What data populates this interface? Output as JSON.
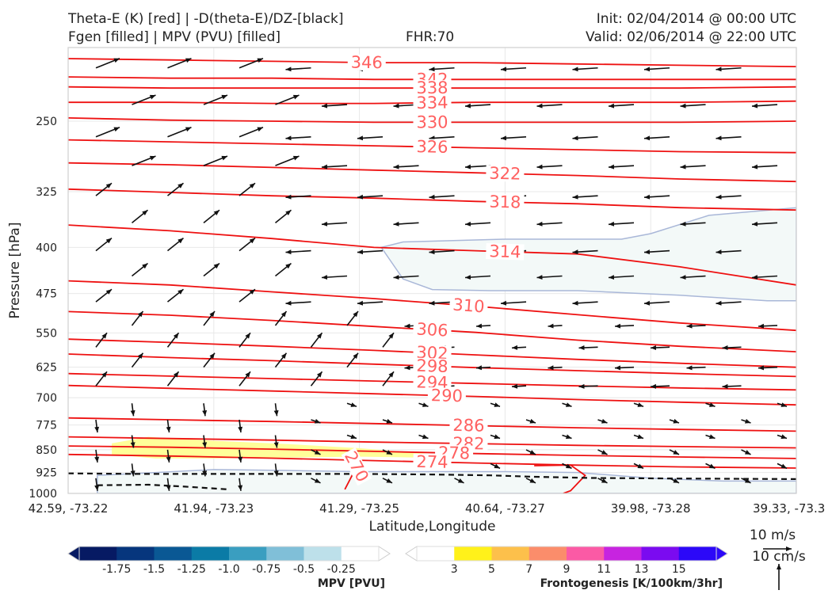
{
  "header": {
    "title_line1": "Theta-E (K) [red] | -D(theta-E)/DZ-[black]",
    "title_line2": "Fgen [filled] | MPV (PVU) [filled]",
    "fhr": "FHR:70",
    "init": "Init: 02/04/2014 @ 00:00 UTC",
    "valid": "Valid: 02/06/2014 @ 22:00 UTC"
  },
  "chart_data": {
    "type": "cross-section",
    "xlabel": "Latitude,Longitude",
    "ylabel": "Pressure [hPa]",
    "x_ticks": [
      "42.59, -73.22",
      "41.94, -73.23",
      "41.29, -73.25",
      "40.64, -73.27",
      "39.98, -73.28",
      "39.33, -73.3"
    ],
    "y_ticks": [
      250,
      325,
      400,
      475,
      550,
      625,
      700,
      775,
      850,
      925,
      1000
    ],
    "ylim": [
      1000,
      190
    ],
    "y_scale": "log",
    "grid": true,
    "theta_e_color": "#ee1111",
    "theta_e_label_color": "#ff6060",
    "theta_e_contours": [
      {
        "value": 346,
        "label": "346",
        "p": [
          198,
          199,
          200,
          201,
          201,
          202,
          203,
          204
        ],
        "lab_x": 2.05
      },
      {
        "value": 342,
        "label": "342",
        "p": [
          212,
          213,
          213,
          214,
          214,
          214,
          214,
          214
        ],
        "lab_x": 2.5
      },
      {
        "value": 338,
        "label": "338",
        "p": [
          220,
          221,
          221,
          221,
          221,
          221,
          221,
          220
        ],
        "lab_x": 2.5
      },
      {
        "value": 334,
        "label": "334",
        "p": [
          233,
          233,
          234,
          234,
          233,
          233,
          233,
          232
        ],
        "lab_x": 2.5
      },
      {
        "value": 330,
        "label": "330",
        "p": [
          247,
          249,
          250,
          251,
          251,
          251,
          251,
          250
        ],
        "lab_x": 2.5
      },
      {
        "value": 326,
        "label": "326",
        "p": [
          268,
          270,
          272,
          274,
          276,
          278,
          280,
          281
        ],
        "lab_x": 2.5
      },
      {
        "value": 322,
        "label": "322",
        "p": [
          292,
          294,
          297,
          300,
          303,
          306,
          310,
          313
        ],
        "lab_x": 3.0
      },
      {
        "value": 318,
        "label": "318",
        "p": [
          322,
          326,
          330,
          333,
          337,
          340,
          345,
          348
        ],
        "lab_x": 3.0
      },
      {
        "value": 314,
        "label": "314",
        "p": [
          368,
          376,
          387,
          400,
          405,
          410,
          430,
          460
        ],
        "lab_x": 3.0
      },
      {
        "value": 310,
        "label": "310",
        "p": [
          453,
          460,
          472,
          484,
          498,
          514,
          530,
          545
        ],
        "lab_x": 2.75
      },
      {
        "value": 306,
        "label": "306",
        "p": [
          508,
          515,
          525,
          537,
          549,
          565,
          578,
          590
        ],
        "lab_x": 2.5
      },
      {
        "value": 302,
        "label": "302",
        "p": [
          563,
          570,
          578,
          587,
          597,
          607,
          616,
          625
        ],
        "lab_x": 2.5
      },
      {
        "value": 298,
        "label": "298",
        "p": [
          595,
          603,
          610,
          618,
          626,
          633,
          640,
          647
        ],
        "lab_x": 2.5
      },
      {
        "value": 294,
        "label": "294",
        "p": [
          640,
          646,
          652,
          658,
          664,
          670,
          675,
          680
        ],
        "lab_x": 2.5
      },
      {
        "value": 290,
        "label": "290",
        "p": [
          669,
          676,
          683,
          690,
          697,
          705,
          712,
          719
        ],
        "lab_x": 2.6
      },
      {
        "value": 286,
        "label": "286",
        "p": [
          755,
          760,
          765,
          771,
          777,
          783,
          788,
          793
        ],
        "lab_x": 2.75
      },
      {
        "value": 282,
        "label": "282",
        "p": [
          810,
          815,
          820,
          826,
          831,
          836,
          840,
          844
        ],
        "lab_x": 2.75
      },
      {
        "value": 278,
        "label": "278",
        "p": [
          838,
          842,
          848,
          855,
          862,
          868,
          873,
          878
        ],
        "lab_x": 2.65
      },
      {
        "value": 274,
        "label": "274",
        "p": [
          865,
          870,
          877,
          885,
          893,
          900,
          906,
          910
        ],
        "lab_x": 2.5
      }
    ],
    "contour_270": {
      "label": "270",
      "x": [
        2.0,
        1.95,
        1.9
      ],
      "p": [
        885,
        935,
        985
      ]
    },
    "mpv_fill_color": "#f3f9f8",
    "mpv_edge_color": "#a9b7d8",
    "fgen_fill_color": "#ffff99",
    "wind_arrow_color": "#111111",
    "legend_scale": {
      "wind_label": "10 m/s",
      "omega_label": "10 cm/s"
    }
  },
  "colorbars": {
    "mpv": {
      "title": "MPV [PVU]",
      "colors": [
        "#061a63",
        "#06367d",
        "#0a5894",
        "#0b7ba6",
        "#3a9ec0",
        "#80bfd8",
        "#bde0ea",
        "#ffffff"
      ],
      "tick_labels": [
        "-1.75",
        "-1.5",
        "-1.25",
        "-1.0",
        "-0.75",
        "-0.5",
        "-0.25"
      ]
    },
    "fgen": {
      "title": "Frontogenesis [K/100km/3hr]",
      "colors": [
        "#ffffff",
        "#fff11a",
        "#fdc04b",
        "#fb8d6b",
        "#fb5aa5",
        "#c724e0",
        "#7b0bf0",
        "#2c08f8"
      ],
      "tick_labels": [
        "3",
        "5",
        "7",
        "9",
        "11",
        "13",
        "15"
      ]
    }
  }
}
